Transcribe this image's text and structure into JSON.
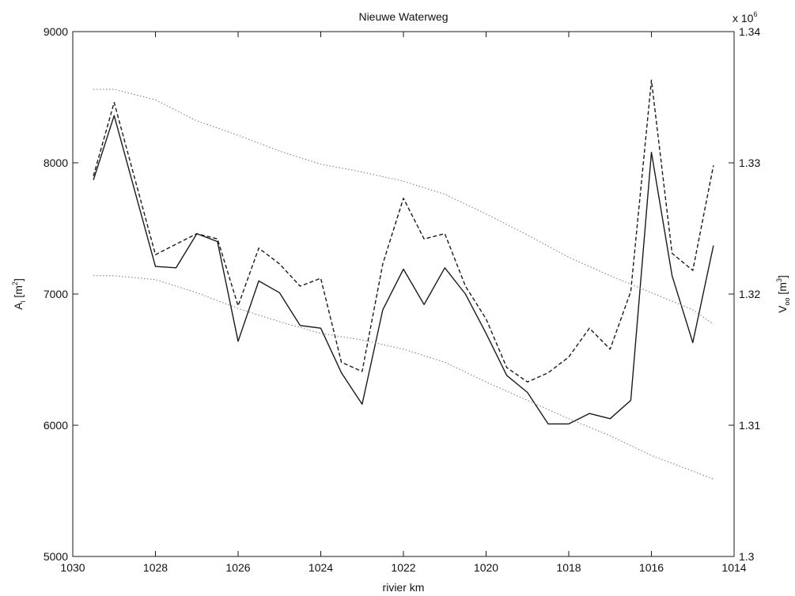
{
  "chart_data": {
    "type": "line",
    "title": "Nieuwe Waterweg",
    "xlabel": "rivier km",
    "ylabel_left": {
      "main": "A",
      "sub": "i",
      "unit_pre": " [m",
      "unit_sup": "2",
      "unit_post": "]"
    },
    "ylabel_right": {
      "main": "V",
      "sub": "oo",
      "unit_pre": " [m",
      "unit_sup": "3",
      "unit_post": "]"
    },
    "right_multiplier": {
      "base": "x 10",
      "exp": "6"
    },
    "xlim": [
      1030,
      1014
    ],
    "xticks": [
      1030,
      1028,
      1026,
      1024,
      1022,
      1020,
      1018,
      1016,
      1014
    ],
    "xtick_labels": [
      "1030",
      "1028",
      "1026",
      "1024",
      "1022",
      "1020",
      "1018",
      "1016",
      "1014"
    ],
    "ylim_left": [
      5000,
      9000
    ],
    "yticks_left": [
      5000,
      6000,
      7000,
      8000,
      9000
    ],
    "ytick_labels_left": [
      "5000",
      "6000",
      "7000",
      "8000",
      "9000"
    ],
    "ylim_right": [
      1.3,
      1.34
    ],
    "yticks_right": [
      1.3,
      1.31,
      1.32,
      1.33,
      1.34
    ],
    "ytick_labels_right": [
      "1.3",
      "1.31",
      "1.32",
      "1.33",
      "1.34"
    ],
    "grid": false,
    "series": [
      {
        "style": "solid",
        "color": "#1a1a1a",
        "axis": "left",
        "x": [
          1029.5,
          1029,
          1028,
          1027.5,
          1027,
          1026.5,
          1026,
          1025.5,
          1025,
          1024.5,
          1024,
          1023.5,
          1023,
          1022.5,
          1022,
          1021.5,
          1021,
          1020.5,
          1020,
          1019.5,
          1019,
          1018.5,
          1018,
          1017.5,
          1017,
          1016.5,
          1016,
          1015.5,
          1015,
          1014.5
        ],
        "y": [
          7870,
          8360,
          7210,
          7200,
          7460,
          7400,
          6640,
          7100,
          7010,
          6760,
          6740,
          6400,
          6160,
          6880,
          7190,
          6920,
          7200,
          7000,
          6700,
          6380,
          6250,
          6010,
          6010,
          6090,
          6050,
          6190,
          8080,
          7140,
          6630,
          7370
        ]
      },
      {
        "style": "dashed",
        "color": "#1a1a1a",
        "axis": "left",
        "x": [
          1029.5,
          1029,
          1028,
          1027.5,
          1027,
          1026.5,
          1026,
          1025.5,
          1025,
          1024.5,
          1024,
          1023.5,
          1023,
          1022.5,
          1022,
          1021.5,
          1021,
          1020.5,
          1020,
          1019.5,
          1019,
          1018.5,
          1018,
          1017.5,
          1017,
          1016.5,
          1016,
          1015.5,
          1015,
          1014.5
        ],
        "y": [
          7900,
          8460,
          7300,
          7380,
          7460,
          7420,
          6910,
          7350,
          7230,
          7060,
          7120,
          6480,
          6410,
          7230,
          7730,
          7420,
          7460,
          7060,
          6810,
          6440,
          6330,
          6400,
          6520,
          6740,
          6580,
          7020,
          8630,
          7310,
          7180,
          7980
        ]
      },
      {
        "style": "dotted",
        "color": "#777777",
        "axis": "right",
        "x": [
          1029.5,
          1029,
          1028,
          1027,
          1026,
          1025,
          1024,
          1023,
          1022,
          1021,
          1020,
          1019,
          1018,
          1017,
          1016,
          1015,
          1014.5
        ],
        "y": [
          1.3356,
          1.3356,
          1.3348,
          1.3332,
          1.3321,
          1.3309,
          1.3299,
          1.3293,
          1.3286,
          1.3276,
          1.3261,
          1.3245,
          1.3228,
          1.3214,
          1.3201,
          1.3188,
          1.3177
        ]
      },
      {
        "style": "dotted",
        "color": "#777777",
        "axis": "right",
        "x": [
          1029.5,
          1029,
          1028,
          1027,
          1026,
          1025,
          1024,
          1023,
          1022,
          1021,
          1020,
          1019,
          1018,
          1017,
          1016,
          1015,
          1014.5
        ],
        "y": [
          1.3214,
          1.3214,
          1.3211,
          1.3201,
          1.3189,
          1.3179,
          1.317,
          1.3165,
          1.3158,
          1.3148,
          1.3133,
          1.3119,
          1.3105,
          1.3092,
          1.3077,
          1.3065,
          1.3059
        ]
      }
    ]
  }
}
